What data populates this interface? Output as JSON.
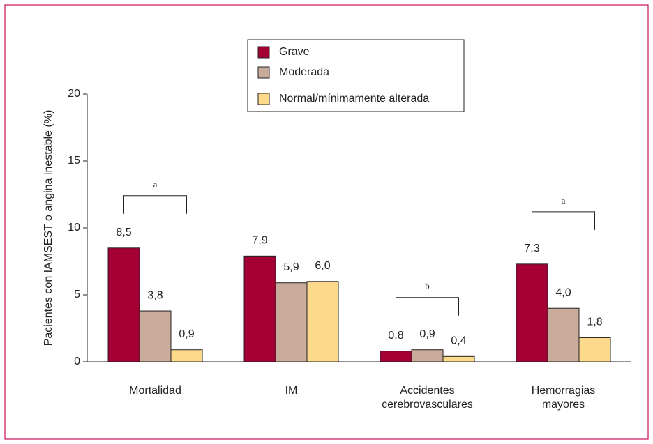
{
  "chart_data": {
    "type": "bar",
    "y_label": "Pacientes con IAMSEST o angina inestable (%)",
    "categories": [
      "Mortalidad",
      "IM",
      "Accidentes\ncerebrovasculares",
      "Hemorragias\nmayores"
    ],
    "series": [
      {
        "name": "Grave",
        "color": "#a50034",
        "values": [
          8.5,
          7.9,
          0.8,
          7.3
        ],
        "value_labels": [
          "8,5",
          "7,9",
          "0,8",
          "7,3"
        ]
      },
      {
        "name": "Moderada",
        "color": "#c9ab9b",
        "values": [
          3.8,
          5.9,
          0.9,
          4.0
        ],
        "value_labels": [
          "3,8",
          "5,9",
          "0,9",
          "4,0"
        ]
      },
      {
        "name": "Normal/mínimamente alterada",
        "color": "#fdd98c",
        "values": [
          0.9,
          6.0,
          0.4,
          1.8
        ],
        "value_labels": [
          "0,9",
          "6,0",
          "0,4",
          "1,8"
        ]
      }
    ],
    "annotations": [
      {
        "label": "a",
        "category": "Mortalidad"
      },
      {
        "label": "b",
        "category": "Accidentes\ncerebrovasculares"
      },
      {
        "label": "a",
        "category": "Hemorragias\nmayores"
      }
    ],
    "ylim": [
      0,
      20
    ],
    "yticks": [
      0,
      5,
      10,
      15,
      20
    ],
    "legend": "top"
  }
}
